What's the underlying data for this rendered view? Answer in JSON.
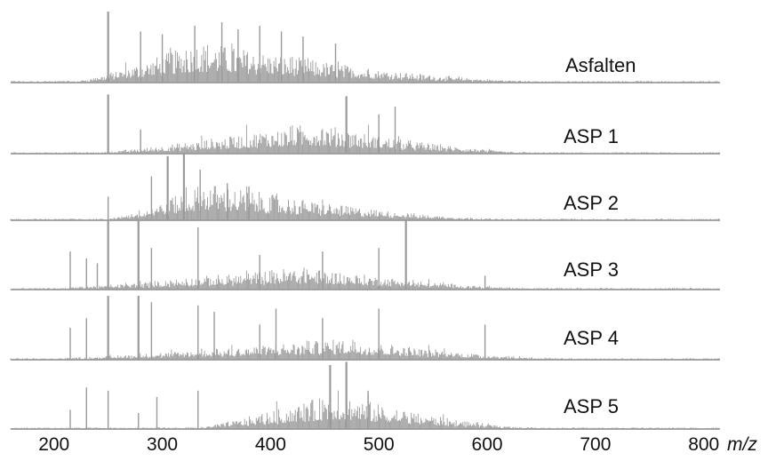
{
  "chart_data": {
    "type": "line",
    "xlabel": "m/z",
    "xlim": [
      160,
      815
    ],
    "xticks": [
      200,
      300,
      400,
      500,
      600,
      700,
      800
    ],
    "grid": false,
    "legend": "none",
    "colors": {
      "baseline": "#8a8a8a",
      "peaks": "#9a9a9a",
      "text": "#111111"
    },
    "series": [
      {
        "name": "Asfalten",
        "envelope": {
          "start": 220,
          "peak": 335,
          "end": 650,
          "max": 0.58
        },
        "prominent_peaks": [
          [
            250,
            1.0
          ],
          [
            280,
            0.72
          ],
          [
            300,
            0.68
          ],
          [
            330,
            0.8
          ],
          [
            355,
            0.85
          ],
          [
            370,
            0.75
          ],
          [
            390,
            0.8
          ],
          [
            410,
            0.72
          ],
          [
            430,
            0.65
          ],
          [
            460,
            0.55
          ]
        ]
      },
      {
        "name": "ASP 1",
        "envelope": {
          "start": 240,
          "peak": 440,
          "end": 650,
          "max": 0.5
        },
        "prominent_peaks": [
          [
            250,
            0.98
          ],
          [
            280,
            0.4
          ],
          [
            470,
            0.95
          ],
          [
            500,
            0.65
          ],
          [
            515,
            0.78
          ]
        ]
      },
      {
        "name": "ASP 2",
        "envelope": {
          "start": 250,
          "peak": 340,
          "end": 620,
          "max": 0.55
        },
        "prominent_peaks": [
          [
            250,
            0.35
          ],
          [
            290,
            0.65
          ],
          [
            305,
            0.95
          ],
          [
            320,
            1.0
          ],
          [
            335,
            0.75
          ],
          [
            360,
            0.55
          ],
          [
            380,
            0.5
          ]
        ]
      },
      {
        "name": "ASP 3",
        "envelope": {
          "start": 200,
          "peak": 430,
          "end": 650,
          "max": 0.32
        },
        "prominent_peaks": [
          [
            215,
            0.55
          ],
          [
            230,
            0.45
          ],
          [
            240,
            0.38
          ],
          [
            250,
            1.0
          ],
          [
            278,
            1.0
          ],
          [
            290,
            0.6
          ],
          [
            333,
            0.9
          ],
          [
            390,
            0.5
          ],
          [
            448,
            0.55
          ],
          [
            500,
            0.6
          ],
          [
            525,
            1.0
          ],
          [
            598,
            0.2
          ]
        ]
      },
      {
        "name": "ASP 4",
        "envelope": {
          "start": 200,
          "peak": 470,
          "end": 680,
          "max": 0.32
        },
        "prominent_peaks": [
          [
            215,
            0.5
          ],
          [
            230,
            0.65
          ],
          [
            250,
            1.0
          ],
          [
            278,
            1.0
          ],
          [
            290,
            0.9
          ],
          [
            333,
            0.85
          ],
          [
            348,
            0.75
          ],
          [
            390,
            0.55
          ],
          [
            405,
            0.8
          ],
          [
            448,
            0.65
          ],
          [
            500,
            0.8
          ],
          [
            598,
            0.55
          ]
        ]
      },
      {
        "name": "ASP 5",
        "envelope": {
          "start": 330,
          "peak": 460,
          "end": 650,
          "max": 0.55
        },
        "prominent_peaks": [
          [
            215,
            0.3
          ],
          [
            230,
            0.65
          ],
          [
            250,
            0.6
          ],
          [
            278,
            0.25
          ],
          [
            295,
            0.5
          ],
          [
            333,
            0.6
          ],
          [
            455,
            1.0
          ],
          [
            470,
            1.05
          ],
          [
            490,
            0.6
          ]
        ]
      }
    ]
  }
}
